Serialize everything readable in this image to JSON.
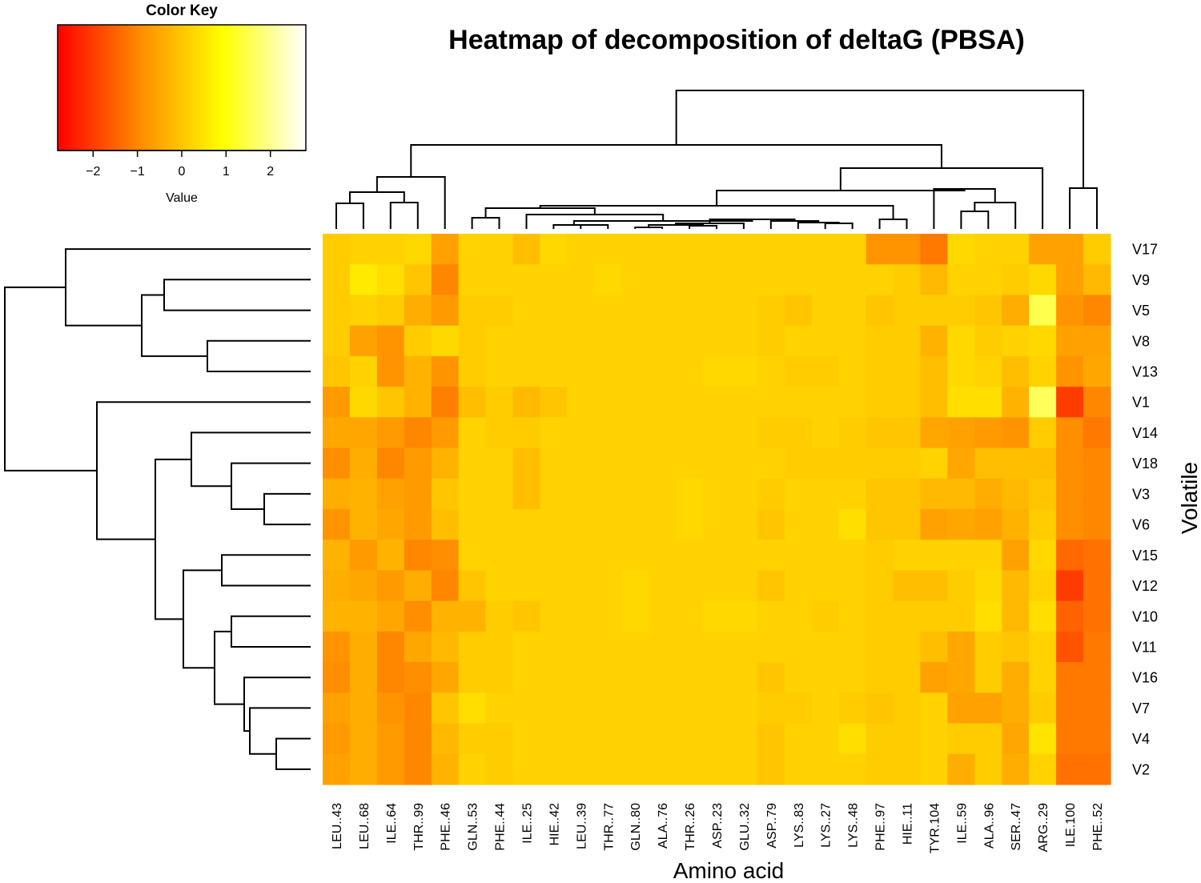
{
  "chart_data": {
    "type": "heatmap",
    "title": "Heatmap of decomposition of deltaG (PBSA)",
    "xlabel": "Amino acid",
    "ylabel": "Volatile",
    "color_key": {
      "title": "Color Key",
      "xlabel": "Value",
      "range": [
        -2.8,
        2.8
      ],
      "ticks": [
        -2,
        -1,
        0,
        1,
        2
      ],
      "tick_labels": [
        "−2",
        "−1",
        "0",
        "1",
        "2"
      ],
      "colors": [
        "#ff0000",
        "#ff8c00",
        "#ffff00",
        "#ffffff"
      ]
    },
    "columns": [
      "LEU..43",
      "LEU..68",
      "ILE..64",
      "THR..99",
      "PHE..46",
      "GLN..53",
      "PHE..44",
      "ILE..25",
      "HIE..42",
      "LEU..39",
      "THR..77",
      "GLN..80",
      "ALA..76",
      "THR..26",
      "ASP..23",
      "GLU..32",
      "ASP..79",
      "LYS..83",
      "LYS..27",
      "LYS..48",
      "PHE..97",
      "HIE..11",
      "TYR.104",
      "ILE..59",
      "ALA..96",
      "SER..47",
      "ARG..29",
      "ILE.100",
      "PHE..52"
    ],
    "rows": [
      "V17",
      "V9",
      "V5",
      "V8",
      "V13",
      "V1",
      "V14",
      "V18",
      "V3",
      "V6",
      "V15",
      "V12",
      "V10",
      "V11",
      "V16",
      "V7",
      "V4",
      "V2"
    ],
    "values": [
      [
        0.1,
        0.2,
        0.2,
        0.3,
        -0.6,
        0.2,
        0.2,
        -0.1,
        0.3,
        0.2,
        0.2,
        0.2,
        0.2,
        0.2,
        0.2,
        0.2,
        0.2,
        0.2,
        0.2,
        0.2,
        -0.8,
        -0.8,
        -1.2,
        0.3,
        0.2,
        0.2,
        -0.6,
        -0.6,
        0.1
      ],
      [
        0.1,
        0.6,
        0.4,
        0.0,
        -1.0,
        0.2,
        0.2,
        0.2,
        0.2,
        0.2,
        0.3,
        0.2,
        0.2,
        0.2,
        0.2,
        0.2,
        0.2,
        0.2,
        0.2,
        0.2,
        0.2,
        0.1,
        -0.2,
        0.2,
        0.2,
        0.1,
        0.3,
        -0.6,
        -0.2
      ],
      [
        0.1,
        0.2,
        0.1,
        -0.4,
        -0.7,
        0.1,
        0.1,
        0.2,
        0.2,
        0.2,
        0.2,
        0.2,
        0.2,
        0.2,
        0.2,
        0.2,
        0.1,
        0.0,
        0.2,
        0.2,
        0.0,
        0.1,
        0.1,
        0.1,
        0.0,
        -0.4,
        1.5,
        -0.8,
        -1.0
      ],
      [
        0.1,
        -0.6,
        -0.8,
        0.1,
        0.3,
        0.1,
        0.2,
        0.2,
        0.2,
        0.2,
        0.2,
        0.2,
        0.2,
        0.2,
        0.2,
        0.2,
        0.1,
        0.2,
        0.2,
        0.2,
        0.1,
        0.1,
        -0.3,
        0.3,
        0.1,
        0.2,
        0.3,
        -0.6,
        -0.6
      ],
      [
        0.0,
        0.2,
        -0.8,
        -0.3,
        -0.8,
        0.1,
        0.2,
        0.2,
        0.2,
        0.2,
        0.2,
        0.2,
        0.2,
        0.2,
        0.3,
        0.3,
        0.2,
        0.1,
        0.1,
        0.2,
        0.1,
        0.1,
        -0.1,
        0.3,
        0.2,
        -0.1,
        0.2,
        -0.8,
        -0.5
      ],
      [
        -0.7,
        0.3,
        0.0,
        -0.3,
        -1.1,
        -0.1,
        0.1,
        -0.2,
        0.0,
        0.2,
        0.2,
        0.2,
        0.2,
        0.2,
        0.2,
        0.2,
        0.2,
        0.2,
        0.2,
        0.2,
        0.1,
        0.1,
        -0.1,
        0.4,
        0.4,
        -0.3,
        1.6,
        -2.0,
        -1.0
      ],
      [
        -0.5,
        -0.5,
        -0.7,
        -1.0,
        -0.7,
        0.2,
        0.1,
        0.1,
        0.2,
        0.2,
        0.2,
        0.2,
        0.2,
        0.2,
        0.2,
        0.2,
        0.1,
        0.1,
        0.2,
        0.1,
        0.0,
        0.0,
        -0.5,
        -0.6,
        -0.7,
        -0.8,
        0.1,
        -0.9,
        -1.2
      ],
      [
        -0.9,
        -0.4,
        -1.0,
        -0.7,
        -0.3,
        0.2,
        0.2,
        -0.1,
        0.2,
        0.2,
        0.2,
        0.2,
        0.2,
        0.2,
        0.2,
        0.2,
        0.2,
        0.1,
        0.1,
        0.1,
        0.1,
        0.1,
        0.2,
        -0.5,
        -0.1,
        -0.1,
        -0.1,
        -0.9,
        -1.0
      ],
      [
        -0.4,
        -0.3,
        -0.6,
        -0.7,
        0.0,
        0.2,
        0.2,
        -0.1,
        0.2,
        0.2,
        0.2,
        0.2,
        0.2,
        0.3,
        0.2,
        0.2,
        0.1,
        0.2,
        0.2,
        0.2,
        0.0,
        0.0,
        -0.2,
        -0.2,
        -0.4,
        -0.2,
        0.0,
        -0.9,
        -1.0
      ],
      [
        -0.8,
        -0.3,
        -0.5,
        -0.7,
        -0.1,
        0.2,
        0.2,
        0.2,
        0.2,
        0.2,
        0.2,
        0.2,
        0.2,
        0.3,
        0.2,
        0.2,
        0.0,
        0.2,
        0.2,
        0.4,
        0.0,
        0.0,
        -0.6,
        -0.5,
        -0.6,
        -0.3,
        0.1,
        -0.9,
        -1.0
      ],
      [
        -0.3,
        -0.7,
        -0.3,
        -1.0,
        -0.9,
        0.2,
        0.2,
        0.2,
        0.2,
        0.2,
        0.2,
        0.2,
        0.2,
        0.2,
        0.2,
        0.2,
        0.2,
        0.2,
        0.2,
        0.2,
        0.1,
        0.2,
        0.2,
        0.2,
        0.2,
        -0.6,
        0.3,
        -1.4,
        -1.3
      ],
      [
        -0.4,
        -0.5,
        -0.7,
        -0.4,
        -1.0,
        0.0,
        0.2,
        0.2,
        0.2,
        0.2,
        0.2,
        0.3,
        0.2,
        0.2,
        0.2,
        0.2,
        0.0,
        0.2,
        0.2,
        0.2,
        0.1,
        -0.1,
        -0.1,
        0.1,
        0.3,
        -0.2,
        0.2,
        -2.0,
        -1.3
      ],
      [
        -0.3,
        -0.3,
        -0.5,
        -0.9,
        -0.3,
        -0.3,
        0.1,
        0.0,
        0.2,
        0.2,
        0.2,
        0.3,
        0.2,
        0.2,
        0.3,
        0.3,
        0.2,
        0.2,
        0.1,
        0.2,
        0.1,
        0.1,
        0.1,
        0.1,
        0.4,
        -0.2,
        0.4,
        -1.5,
        -1.3
      ],
      [
        -0.8,
        -0.4,
        -1.0,
        -0.5,
        -0.2,
        0.1,
        0.1,
        0.2,
        0.2,
        0.2,
        0.2,
        0.2,
        0.2,
        0.2,
        0.2,
        0.2,
        0.2,
        0.2,
        0.2,
        0.2,
        0.1,
        0.1,
        -0.1,
        -0.5,
        0.1,
        0.0,
        0.2,
        -1.7,
        -1.2
      ],
      [
        -0.9,
        -0.4,
        -1.0,
        -0.9,
        -0.5,
        0.1,
        0.1,
        0.2,
        0.2,
        0.2,
        0.2,
        0.2,
        0.2,
        0.2,
        0.2,
        0.2,
        0.0,
        0.2,
        0.2,
        0.2,
        0.1,
        0.1,
        -0.6,
        -0.5,
        0.1,
        -0.4,
        0.2,
        -1.2,
        -1.2
      ],
      [
        -0.6,
        -0.4,
        -0.8,
        -1.0,
        0.0,
        0.4,
        0.2,
        0.2,
        0.2,
        0.2,
        0.2,
        0.2,
        0.2,
        0.2,
        0.2,
        0.2,
        0.1,
        0.1,
        0.2,
        0.1,
        0.0,
        0.1,
        0.2,
        -0.6,
        -0.6,
        -0.4,
        0.1,
        -1.2,
        -1.2
      ],
      [
        -0.7,
        -0.4,
        -0.7,
        -1.0,
        -0.2,
        0.1,
        0.1,
        0.2,
        0.2,
        0.2,
        0.2,
        0.2,
        0.2,
        0.2,
        0.2,
        0.2,
        0.0,
        0.2,
        0.2,
        0.4,
        0.1,
        0.1,
        0.2,
        0.1,
        0.1,
        -0.5,
        0.5,
        -1.2,
        -1.2
      ],
      [
        -0.6,
        -0.4,
        -0.7,
        -1.0,
        -0.3,
        0.2,
        0.1,
        0.2,
        0.2,
        0.2,
        0.2,
        0.2,
        0.2,
        0.2,
        0.2,
        0.2,
        0.0,
        0.2,
        0.2,
        0.2,
        0.1,
        0.1,
        0.2,
        -0.4,
        0.1,
        -0.4,
        0.2,
        -1.3,
        -1.3
      ]
    ]
  }
}
